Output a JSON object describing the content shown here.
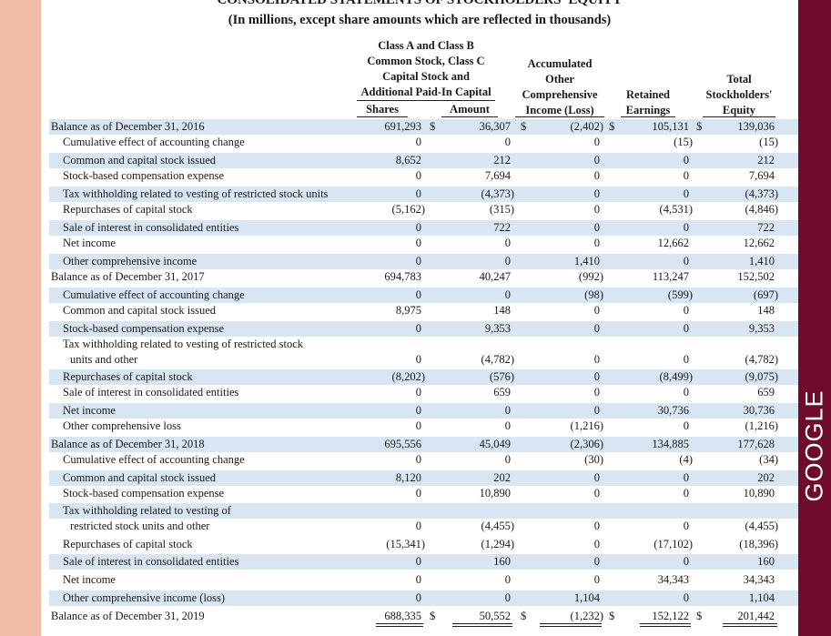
{
  "title": "CONSOLIDATED STATEMENTS OF STOCKHOLDERS' EQUITY",
  "subtitle": "(In millions, except share amounts which are reflected in thousands)",
  "brand": "GOOGLE",
  "colors": {
    "background": "#f0bba4",
    "band": "#6e0b2a",
    "stripe": "#d8e6f3"
  },
  "headers": {
    "group_common": [
      "Class A and Class B",
      "Common Stock, Class C",
      "Capital Stock and",
      "Additional Paid-In Capital"
    ],
    "shares": "Shares",
    "amount": "Amount",
    "aoci": [
      "Accumulated",
      "Other",
      "Comprehensive",
      "Income (Loss)"
    ],
    "retained": [
      "Retained",
      "Earnings"
    ],
    "total": [
      "Total",
      "Stockholders'",
      "Equity"
    ]
  },
  "currency": "$",
  "rows": [
    {
      "label": "Balance as of December 31, 2016",
      "indent": 0,
      "values": [
        "691,293",
        "36,307",
        "(2,402)",
        "105,131",
        "139,036"
      ]
    },
    {
      "label": "Cumulative effect of accounting change",
      "indent": 1,
      "values": [
        "0",
        "0",
        "0",
        "(15)",
        "(15)"
      ]
    },
    {
      "label": "Common and capital stock issued",
      "indent": 1,
      "values": [
        "8,652",
        "212",
        "0",
        "0",
        "212"
      ]
    },
    {
      "label": "Stock-based compensation expense",
      "indent": 1,
      "values": [
        "0",
        "7,694",
        "0",
        "0",
        "7,694"
      ]
    },
    {
      "label": "Tax withholding related to vesting of restricted stock units",
      "indent": 1,
      "values": [
        "0",
        "(4,373)",
        "0",
        "0",
        "(4,373)"
      ]
    },
    {
      "label": "Repurchases of capital stock",
      "indent": 1,
      "values": [
        "(5,162)",
        "(315)",
        "0",
        "(4,531)",
        "(4,846)"
      ]
    },
    {
      "label": "Sale of interest in consolidated entities",
      "indent": 1,
      "values": [
        "0",
        "722",
        "0",
        "0",
        "722"
      ]
    },
    {
      "label": "Net income",
      "indent": 1,
      "values": [
        "0",
        "0",
        "0",
        "12,662",
        "12,662"
      ]
    },
    {
      "label": "Other comprehensive income",
      "indent": 1,
      "values": [
        "0",
        "0",
        "1,410",
        "0",
        "1,410"
      ]
    },
    {
      "label": "Balance as of December 31, 2017",
      "indent": 0,
      "values": [
        "694,783",
        "40,247",
        "(992)",
        "113,247",
        "152,502"
      ]
    },
    {
      "label": "Cumulative effect of accounting change",
      "indent": 1,
      "values": [
        "0",
        "0",
        "(98)",
        "(599)",
        "(697)"
      ]
    },
    {
      "label": "Common and capital stock issued",
      "indent": 1,
      "values": [
        "8,975",
        "148",
        "0",
        "0",
        "148"
      ]
    },
    {
      "label": "Stock-based compensation expense",
      "indent": 1,
      "values": [
        "0",
        "9,353",
        "0",
        "0",
        "9,353"
      ]
    },
    {
      "label": "Tax withholding related to vesting of restricted stock",
      "label2": "units and other",
      "indent": 1,
      "values": [
        "0",
        "(4,782)",
        "0",
        "0",
        "(4,782)"
      ]
    },
    {
      "label": "Repurchases of capital stock",
      "indent": 1,
      "values": [
        "(8,202)",
        "(576)",
        "0",
        "(8,499)",
        "(9,075)"
      ]
    },
    {
      "label": "Sale of interest in consolidated entities",
      "indent": 1,
      "values": [
        "0",
        "659",
        "0",
        "0",
        "659"
      ]
    },
    {
      "label": "Net income",
      "indent": 1,
      "values": [
        "0",
        "0",
        "0",
        "30,736",
        "30,736"
      ]
    },
    {
      "label": "Other comprehensive loss",
      "indent": 1,
      "values": [
        "0",
        "0",
        "(1,216)",
        "0",
        "(1,216)"
      ]
    },
    {
      "label": "Balance as of December 31, 2018",
      "indent": 0,
      "values": [
        "695,556",
        "45,049",
        "(2,306)",
        "134,885",
        "177,628"
      ]
    },
    {
      "label": "Cumulative effect of accounting change",
      "indent": 1,
      "values": [
        "0",
        "0",
        "(30)",
        "(4)",
        "(34)"
      ]
    },
    {
      "label": "Common and capital stock issued",
      "indent": 1,
      "values": [
        "8,120",
        "202",
        "0",
        "0",
        "202"
      ]
    },
    {
      "label": "Stock-based compensation expense",
      "indent": 1,
      "values": [
        "0",
        "10,890",
        "0",
        "0",
        "10,890"
      ]
    },
    {
      "label": "Tax withholding related to vesting of",
      "label2": "restricted stock units and other",
      "indent": 1,
      "values": [
        "0",
        "(4,455)",
        "0",
        "0",
        "(4,455)"
      ]
    },
    {
      "label": "Repurchases of capital stock",
      "indent": 1,
      "values": [
        "(15,341)",
        "(1,294)",
        "0",
        "(17,102)",
        "(18,396)"
      ]
    },
    {
      "label": "Sale of interest in consolidated entities",
      "indent": 1,
      "values": [
        "0",
        "160",
        "0",
        "0",
        "160"
      ]
    },
    {
      "label": "Net income",
      "indent": 1,
      "values": [
        "0",
        "0",
        "0",
        "34,343",
        "34,343"
      ]
    },
    {
      "label": "Other comprehensive income (loss)",
      "indent": 1,
      "values": [
        "0",
        "0",
        "1,104",
        "0",
        "1,104"
      ]
    },
    {
      "label": "Balance as of December 31, 2019",
      "indent": 0,
      "values": [
        "688,335",
        "50,552",
        "(1,232)",
        "152,122",
        "201,442"
      ]
    }
  ]
}
